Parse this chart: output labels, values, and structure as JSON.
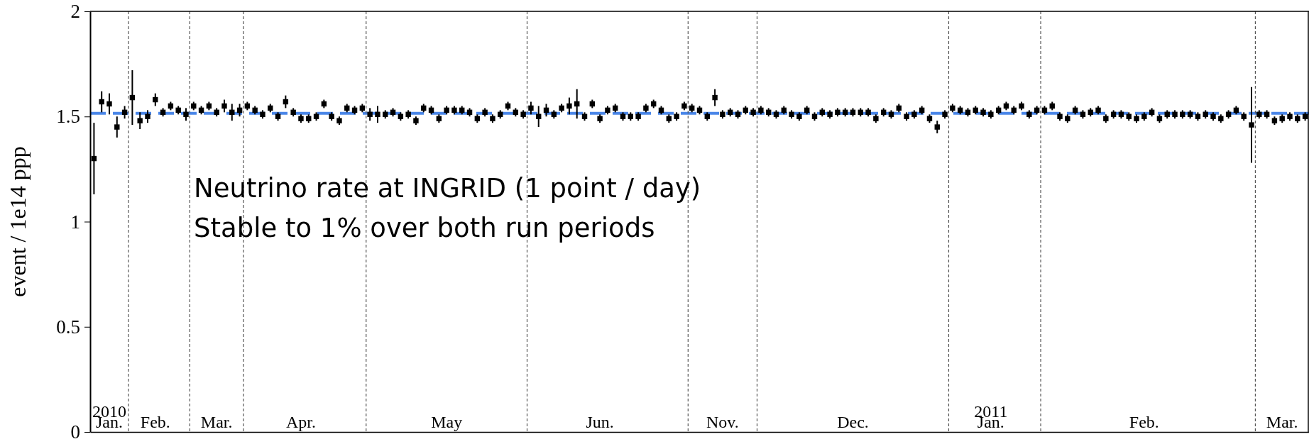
{
  "chart_data": {
    "type": "scatter",
    "ylabel": "event / 1e14 ppp",
    "annotations": [
      "Neutrino rate at INGRID (1 point / day)",
      "Stable to 1% over both run periods"
    ],
    "categories": [
      null,
      null,
      "2010\nJan.",
      null,
      null,
      null,
      null,
      null,
      "Feb.",
      null,
      null,
      null,
      null,
      null,
      null,
      null,
      "Mar.",
      null,
      null,
      null,
      null,
      null,
      null,
      null,
      null,
      null,
      null,
      "Apr.",
      null,
      null,
      null,
      null,
      null,
      null,
      null,
      null,
      null,
      null,
      null,
      null,
      null,
      null,
      null,
      null,
      null,
      null,
      "May",
      null,
      null,
      null,
      null,
      null,
      null,
      null,
      null,
      null,
      null,
      null,
      null,
      null,
      null,
      null,
      null,
      null,
      null,
      null,
      "Jun.",
      null,
      null,
      null,
      null,
      null,
      null,
      null,
      null,
      null,
      null,
      null,
      null,
      null,
      null,
      null,
      "Nov.",
      null,
      null,
      null,
      null,
      null,
      null,
      null,
      null,
      null,
      null,
      null,
      null,
      null,
      null,
      null,
      null,
      "Dec.",
      null,
      null,
      null,
      null,
      null,
      null,
      null,
      null,
      null,
      null,
      null,
      null,
      null,
      null,
      null,
      null,
      null,
      "2011\nJan.",
      null,
      null,
      null,
      null,
      null,
      null,
      null,
      null,
      null,
      null,
      null,
      null,
      null,
      null,
      null,
      null,
      null,
      null,
      null,
      "Feb.",
      null,
      null,
      null,
      null,
      null,
      null,
      null,
      null,
      null,
      null,
      null,
      null,
      null,
      null,
      null,
      null,
      null,
      "Mar.",
      null,
      null,
      null
    ],
    "ylim": [
      0,
      2
    ],
    "yticks": [
      0,
      0.5,
      1,
      1.5,
      2
    ],
    "marker": "square",
    "ref_lines": [
      {
        "axis": "y",
        "value": 1.515,
        "color": "#4a86e8",
        "line_style": "dashed"
      }
    ],
    "series": [
      {
        "color": "#000000",
        "values": [
          1.3,
          1.57,
          1.56,
          1.45,
          1.52,
          1.59,
          1.48,
          1.5,
          1.58,
          1.52,
          1.55,
          1.53,
          1.51,
          1.55,
          1.53,
          1.55,
          1.52,
          1.55,
          1.52,
          1.53,
          1.55,
          1.53,
          1.51,
          1.54,
          1.5,
          1.57,
          1.52,
          1.49,
          1.49,
          1.5,
          1.56,
          1.5,
          1.48,
          1.54,
          1.53,
          1.54,
          1.51,
          1.51,
          1.51,
          1.52,
          1.5,
          1.51,
          1.48,
          1.54,
          1.53,
          1.49,
          1.53,
          1.53,
          1.53,
          1.52,
          1.49,
          1.52,
          1.49,
          1.51,
          1.55,
          1.52,
          1.51,
          1.54,
          1.5,
          1.53,
          1.51,
          1.54,
          1.55,
          1.56,
          1.5,
          1.56,
          1.49,
          1.53,
          1.54,
          1.5,
          1.5,
          1.5,
          1.54,
          1.56,
          1.53,
          1.49,
          1.5,
          1.55,
          1.54,
          1.53,
          1.5,
          1.59,
          1.51,
          1.52,
          1.51,
          1.53,
          1.52,
          1.53,
          1.52,
          1.51,
          1.53,
          1.51,
          1.5,
          1.53,
          1.5,
          1.52,
          1.51,
          1.52,
          1.52,
          1.52,
          1.52,
          1.52,
          1.49,
          1.52,
          1.51,
          1.54,
          1.5,
          1.51,
          1.53,
          1.49,
          1.45,
          1.51,
          1.54,
          1.53,
          1.52,
          1.53,
          1.52,
          1.51,
          1.53,
          1.55,
          1.53,
          1.55,
          1.51,
          1.53,
          1.53,
          1.55,
          1.5,
          1.49,
          1.53,
          1.51,
          1.52,
          1.53,
          1.49,
          1.51,
          1.51,
          1.5,
          1.49,
          1.5,
          1.52,
          1.49,
          1.51,
          1.51,
          1.51,
          1.51,
          1.5,
          1.51,
          1.5,
          1.49,
          1.51,
          1.53,
          1.5,
          1.46,
          1.51,
          1.51,
          1.48,
          1.49,
          1.5,
          1.49,
          1.5
        ],
        "errors": [
          0.17,
          0.05,
          0.05,
          0.05,
          0.03,
          0.13,
          0.04,
          0.03,
          0.03,
          0.02,
          0.02,
          0.02,
          0.03,
          0.02,
          0.02,
          0.02,
          0.02,
          0.03,
          0.04,
          0.03,
          0.02,
          0.02,
          0.02,
          0.02,
          0.02,
          0.03,
          0.02,
          0.02,
          0.02,
          0.02,
          0.02,
          0.02,
          0.02,
          0.02,
          0.02,
          0.02,
          0.03,
          0.04,
          0.02,
          0.02,
          0.02,
          0.02,
          0.02,
          0.02,
          0.02,
          0.02,
          0.02,
          0.02,
          0.02,
          0.02,
          0.02,
          0.02,
          0.02,
          0.02,
          0.02,
          0.02,
          0.02,
          0.03,
          0.05,
          0.03,
          0.02,
          0.02,
          0.04,
          0.07,
          0.02,
          0.02,
          0.02,
          0.02,
          0.02,
          0.02,
          0.02,
          0.02,
          0.02,
          0.02,
          0.02,
          0.02,
          0.02,
          0.02,
          0.02,
          0.02,
          0.02,
          0.04,
          0.02,
          0.02,
          0.02,
          0.02,
          0.02,
          0.02,
          0.02,
          0.02,
          0.02,
          0.02,
          0.02,
          0.02,
          0.02,
          0.02,
          0.02,
          0.02,
          0.02,
          0.02,
          0.02,
          0.02,
          0.02,
          0.02,
          0.02,
          0.02,
          0.02,
          0.02,
          0.02,
          0.02,
          0.03,
          0.02,
          0.02,
          0.02,
          0.02,
          0.02,
          0.02,
          0.02,
          0.02,
          0.02,
          0.02,
          0.02,
          0.02,
          0.02,
          0.02,
          0.02,
          0.02,
          0.02,
          0.02,
          0.02,
          0.02,
          0.02,
          0.02,
          0.02,
          0.02,
          0.02,
          0.02,
          0.02,
          0.02,
          0.02,
          0.02,
          0.02,
          0.02,
          0.02,
          0.02,
          0.02,
          0.02,
          0.02,
          0.02,
          0.02,
          0.02,
          0.18,
          0.02,
          0.02,
          0.02,
          0.02,
          0.02,
          0.02,
          0.02
        ]
      }
    ]
  }
}
